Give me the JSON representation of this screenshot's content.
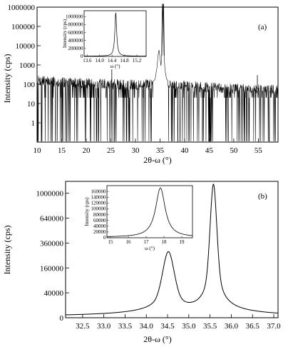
{
  "chart_data": [
    {
      "panel_label": "(a)",
      "type": "line",
      "xlabel": "2θ-ω (°)",
      "ylabel": "Intensity (cps)",
      "xlim": [
        10,
        59
      ],
      "xticks": [
        10,
        15,
        20,
        25,
        30,
        35,
        40,
        45,
        50,
        55
      ],
      "xtick_labels": [
        "10",
        "15",
        "20",
        "25",
        "30",
        "35",
        "40",
        "45",
        "50",
        "55"
      ],
      "yscale": "log",
      "ylim": [
        0.1,
        1000000
      ],
      "yticks": [
        1,
        10,
        100,
        1000,
        10000,
        100000,
        1000000
      ],
      "ytick_labels": [
        "1",
        "10",
        "100",
        "1000",
        "10000",
        "100000",
        "1000000"
      ],
      "series": [
        {
          "x": [
            10,
            20,
            30,
            33,
            34,
            34.4,
            34.6,
            34.8,
            35.0,
            35.2,
            35.4,
            35.5,
            35.6,
            35.7,
            35.8,
            36.0,
            36.3,
            37,
            40,
            50,
            59
          ],
          "y": [
            150,
            110,
            90,
            100,
            180,
            800,
            3000,
            6000,
            2500,
            900,
            5000,
            100000,
            1200000,
            100000,
            5000,
            600,
            200,
            100,
            80,
            60,
            50
          ]
        }
      ],
      "inset": {
        "xlabel": "ω (°)",
        "ylabel": "Intensity (cps)",
        "xlim": [
          13.5,
          15.5
        ],
        "ylim": [
          0,
          1150000
        ],
        "xticks": [
          13.6,
          14.0,
          14.4,
          14.8,
          15.2
        ],
        "xtick_labels": [
          "13.6",
          "14.0",
          "14.4",
          "14.8",
          "15.2"
        ],
        "yticks": [
          0,
          200000,
          400000,
          600000,
          800000,
          1000000
        ],
        "ytick_labels": [
          "0",
          "200000",
          "400000",
          "600000",
          "800000",
          "1000000"
        ],
        "series": [
          {
            "type": "lorentzian",
            "center": 14.52,
            "fwhm": 0.07,
            "peak": 1100000,
            "baseline": 8000
          }
        ]
      }
    },
    {
      "panel_label": "(b)",
      "type": "line",
      "xlabel": "2θ-ω (°)",
      "ylabel": "Intensity (cps)",
      "xlim": [
        32.1,
        37.1
      ],
      "xticks": [
        32.5,
        33.0,
        33.5,
        34.0,
        34.5,
        35.0,
        35.5,
        36.0,
        36.5,
        37.0
      ],
      "xtick_labels": [
        "32.5",
        "33.0",
        "33.5",
        "34.0",
        "34.5",
        "35.0",
        "35.5",
        "36.0",
        "36.5",
        "37.0"
      ],
      "yscale": "sqrt",
      "ylim": [
        0,
        1200000
      ],
      "yticks": [
        0,
        40000,
        160000,
        360000,
        640000,
        1000000
      ],
      "ytick_labels": [
        "0",
        "40000",
        "160000",
        "360000",
        "640000",
        "1000000"
      ],
      "series": [
        {
          "type": "sum_of_pseudo_voigt",
          "baseline": 0,
          "peaks": [
            {
              "center": 34.52,
              "fwhm": 0.26,
              "height": 280000
            },
            {
              "center": 35.58,
              "fwhm": 0.15,
              "height": 1150000
            }
          ]
        }
      ],
      "inset": {
        "xlabel": "ω (°)",
        "ylabel": "Intensity (cps)",
        "xlim": [
          14.8,
          19.6
        ],
        "ylim": [
          0,
          180000
        ],
        "xticks": [
          15,
          16,
          17,
          18,
          19
        ],
        "xtick_labels": [
          "15",
          "16",
          "17",
          "18",
          "19"
        ],
        "yticks": [
          0,
          20000,
          40000,
          60000,
          80000,
          100000,
          120000,
          140000,
          160000
        ],
        "ytick_labels": [
          "0",
          "20000",
          "40000",
          "60000",
          "80000",
          "100000",
          "120000",
          "140000",
          "160000"
        ],
        "series": [
          {
            "type": "lorentzian",
            "center": 17.8,
            "fwhm": 0.65,
            "peak": 172000,
            "baseline": 2000
          }
        ]
      }
    }
  ]
}
